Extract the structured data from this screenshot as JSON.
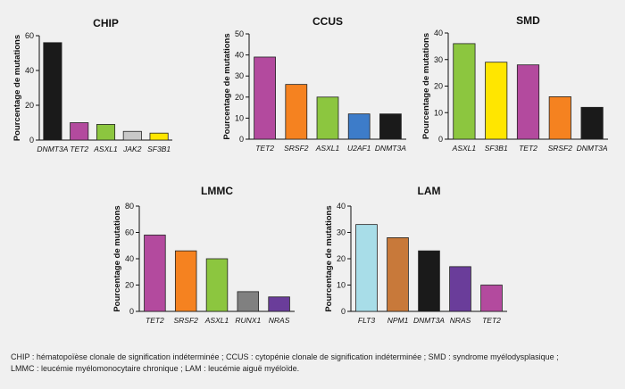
{
  "chart_data": [
    {
      "type": "bar",
      "title": "CHIP",
      "ylabel": "Pourcentage de mutations",
      "xlabel": "",
      "ylim": [
        0,
        60
      ],
      "yticks": [
        0,
        20,
        40,
        60
      ],
      "categories": [
        "DNMT3A",
        "TET2",
        "ASXL1",
        "JAK2",
        "SF3B1"
      ],
      "values": [
        56,
        10,
        9,
        5,
        4
      ],
      "colors": [
        "#1a1a1a",
        "#b34a9e",
        "#8cc63f",
        "#c8c8c8",
        "#ffe600"
      ],
      "grid": false
    },
    {
      "type": "bar",
      "title": "CCUS",
      "ylabel": "Pourcentage de mutations",
      "xlabel": "",
      "ylim": [
        0,
        50
      ],
      "yticks": [
        0,
        10,
        20,
        30,
        40,
        50
      ],
      "categories": [
        "TET2",
        "SRSF2",
        "ASXL1",
        "U2AF1",
        "DNMT3A"
      ],
      "values": [
        39,
        26,
        20,
        12,
        12
      ],
      "colors": [
        "#b34a9e",
        "#f58220",
        "#8cc63f",
        "#3d7cc9",
        "#1a1a1a"
      ],
      "grid": false
    },
    {
      "type": "bar",
      "title": "SMD",
      "ylabel": "Pourcentage de mutations",
      "xlabel": "",
      "ylim": [
        0,
        40
      ],
      "yticks": [
        0,
        10,
        20,
        30,
        40
      ],
      "categories": [
        "ASXL1",
        "SF3B1",
        "TET2",
        "SRSF2",
        "DNMT3A"
      ],
      "values": [
        36,
        29,
        28,
        16,
        12
      ],
      "colors": [
        "#8cc63f",
        "#ffe600",
        "#b34a9e",
        "#f58220",
        "#1a1a1a"
      ],
      "grid": false
    },
    {
      "type": "bar",
      "title": "LMMC",
      "ylabel": "Pourcentage de mutations",
      "xlabel": "",
      "ylim": [
        0,
        80
      ],
      "yticks": [
        0,
        20,
        40,
        60,
        80
      ],
      "categories": [
        "TET2",
        "SRSF2",
        "ASXL1",
        "RUNX1",
        "NRAS"
      ],
      "values": [
        58,
        46,
        40,
        15,
        11
      ],
      "colors": [
        "#b34a9e",
        "#f58220",
        "#8cc63f",
        "#808080",
        "#6a3d9a"
      ],
      "grid": false
    },
    {
      "type": "bar",
      "title": "LAM",
      "ylabel": "Pourcentage de mutations",
      "xlabel": "",
      "ylim": [
        0,
        40
      ],
      "yticks": [
        0,
        10,
        20,
        30,
        40
      ],
      "categories": [
        "FLT3",
        "NPM1",
        "DNMT3A",
        "NRAS",
        "TET2"
      ],
      "values": [
        33,
        28,
        23,
        17,
        10
      ],
      "colors": [
        "#a8dde8",
        "#c8793a",
        "#1a1a1a",
        "#6a3d9a",
        "#b34a9e"
      ],
      "grid": false
    }
  ],
  "caption": {
    "line1": "CHIP : hématopoïèse clonale de signification indéterminée ; CCUS : cytopénie clonale de signification indéterminée ; SMD : syndrome myélodysplasique ;",
    "line2": "LMMC : leucémie myélomonocytaire chronique ; LAM : leucémie aiguë myéloïde."
  }
}
